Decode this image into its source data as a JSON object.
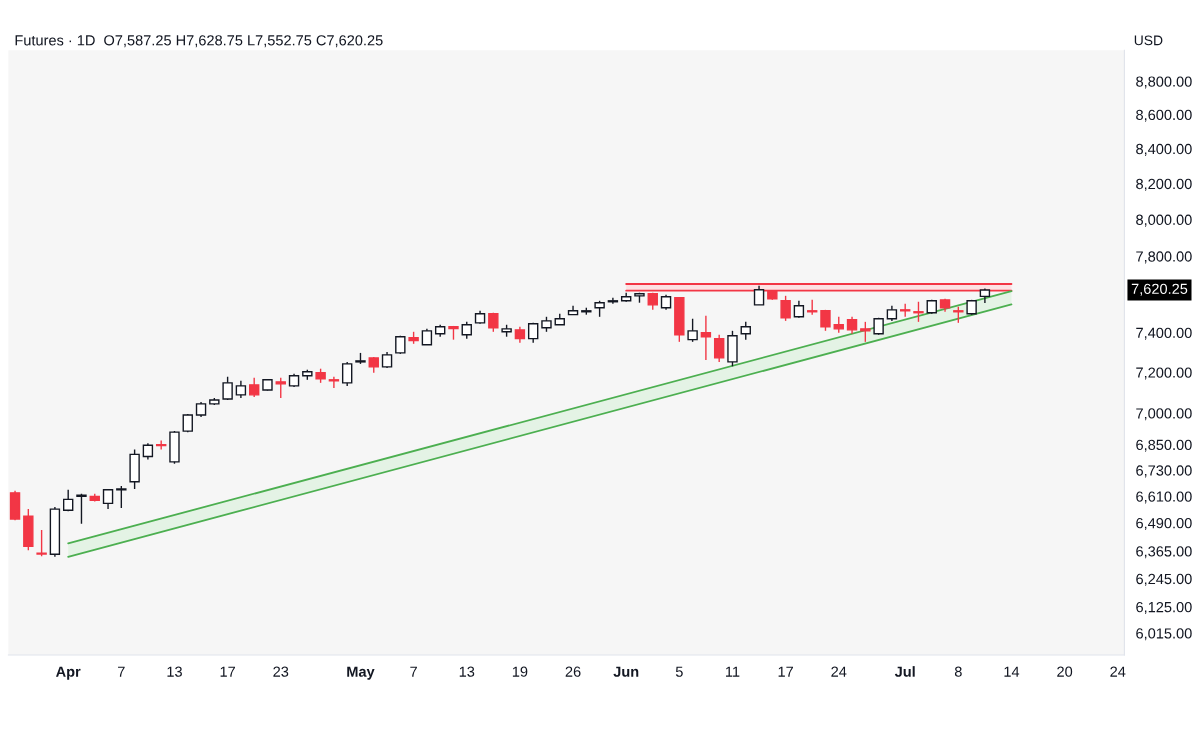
{
  "chart_data": {
    "type": "candlestick",
    "title": "Futures · 1D",
    "subtitle": "O7,587.25 H7,628.75 L7,552.75 C7,620.25",
    "categories": [
      null,
      null,
      null,
      null,
      "Apr",
      null,
      null,
      null,
      "7",
      null,
      null,
      null,
      "13",
      null,
      null,
      null,
      "17",
      null,
      null,
      null,
      "23",
      null,
      null,
      null,
      null,
      null,
      "May",
      null,
      null,
      null,
      "7",
      null,
      null,
      null,
      "13",
      null,
      null,
      null,
      "19",
      null,
      null,
      null,
      "26",
      null,
      null,
      null,
      "Jun",
      null,
      null,
      null,
      "5",
      null,
      null,
      null,
      "11",
      null,
      null,
      null,
      "17",
      null,
      null,
      null,
      "24",
      null,
      null,
      null,
      null,
      "Jul",
      null,
      null,
      null,
      "8",
      null,
      null,
      null,
      "14",
      null,
      null,
      null,
      "20",
      null,
      null,
      null,
      "24"
    ],
    "ohlc": [
      [
        6626,
        6635,
        6502,
        6507
      ],
      [
        6520,
        6552,
        6369,
        6386
      ],
      [
        6356,
        6458,
        6342,
        6352
      ],
      [
        6351,
        6561,
        6340,
        6552
      ],
      [
        6547,
        6640,
        6542,
        6596
      ],
      [
        6610,
        6622,
        6486,
        6615
      ],
      [
        6610,
        6622,
        6587,
        6592
      ],
      [
        6578,
        6644,
        6552,
        6640
      ],
      [
        6640,
        6657,
        6557,
        6644
      ],
      [
        6677,
        6827,
        6644,
        6804
      ],
      [
        6794,
        6856,
        6780,
        6847
      ],
      [
        6850,
        6870,
        6827,
        6845
      ],
      [
        6769,
        6914,
        6760,
        6909
      ],
      [
        6914,
        6996,
        6909,
        6991
      ],
      [
        6991,
        7054,
        6982,
        7045
      ],
      [
        7045,
        7074,
        7040,
        7064
      ],
      [
        7069,
        7178,
        7064,
        7148
      ],
      [
        7089,
        7158,
        7074,
        7133
      ],
      [
        7138,
        7173,
        7079,
        7089
      ],
      [
        7113,
        7165,
        7110,
        7163
      ],
      [
        7153,
        7173,
        7074,
        7143
      ],
      [
        7133,
        7193,
        7128,
        7183
      ],
      [
        7183,
        7213,
        7163,
        7203
      ],
      [
        7198,
        7218,
        7148,
        7168
      ],
      [
        7163,
        7178,
        7123,
        7158
      ],
      [
        7148,
        7252,
        7133,
        7242
      ],
      [
        7252,
        7297,
        7242,
        7257
      ],
      [
        7272,
        7277,
        7198,
        7227
      ],
      [
        7227,
        7302,
        7222,
        7287
      ],
      [
        7297,
        7384,
        7292,
        7379
      ],
      [
        7374,
        7404,
        7343,
        7359
      ],
      [
        7338,
        7419,
        7338,
        7409
      ],
      [
        7394,
        7440,
        7379,
        7430
      ],
      [
        7430,
        7434,
        7364,
        7420
      ],
      [
        7389,
        7455,
        7369,
        7440
      ],
      [
        7450,
        7512,
        7445,
        7497
      ],
      [
        7497,
        7502,
        7404,
        7425
      ],
      [
        7404,
        7440,
        7379,
        7419
      ],
      [
        7414,
        7430,
        7348,
        7369
      ],
      [
        7369,
        7450,
        7348,
        7445
      ],
      [
        7425,
        7481,
        7404,
        7460
      ],
      [
        7440,
        7497,
        7440,
        7471
      ],
      [
        7492,
        7538,
        7492,
        7512
      ],
      [
        7507,
        7528,
        7492,
        7512
      ],
      [
        7528,
        7564,
        7481,
        7554
      ],
      [
        7559,
        7580,
        7549,
        7564
      ],
      [
        7564,
        7606,
        7559,
        7585
      ],
      [
        7590,
        7606,
        7554,
        7601
      ],
      [
        7601,
        7606,
        7517,
        7543
      ],
      [
        7528,
        7595,
        7517,
        7585
      ],
      [
        7580,
        7580,
        7353,
        7389
      ],
      [
        7364,
        7471,
        7353,
        7409
      ],
      [
        7399,
        7487,
        7262,
        7379
      ],
      [
        7369,
        7389,
        7252,
        7272
      ],
      [
        7252,
        7409,
        7230,
        7384
      ],
      [
        7394,
        7455,
        7364,
        7430
      ],
      [
        7543,
        7643,
        7543,
        7622
      ],
      [
        7611,
        7617,
        7569,
        7575
      ],
      [
        7564,
        7590,
        7460,
        7476
      ],
      [
        7481,
        7564,
        7476,
        7538
      ],
      [
        7512,
        7569,
        7492,
        7507
      ],
      [
        7512,
        7517,
        7409,
        7430
      ],
      [
        7440,
        7481,
        7399,
        7419
      ],
      [
        7466,
        7481,
        7394,
        7414
      ],
      [
        7419,
        7455,
        7353,
        7409
      ],
      [
        7394,
        7476,
        7389,
        7471
      ],
      [
        7471,
        7538,
        7460,
        7517
      ],
      [
        7517,
        7548,
        7481,
        7512
      ],
      [
        7507,
        7559,
        7455,
        7502
      ],
      [
        7502,
        7569,
        7497,
        7564
      ],
      [
        7569,
        7575,
        7507,
        7528
      ],
      [
        7512,
        7533,
        7450,
        7507
      ],
      [
        7497,
        7569,
        7492,
        7564
      ],
      [
        7587.25,
        7628.75,
        7552.75,
        7620.25
      ],
      null,
      null,
      null,
      null,
      null,
      null,
      null,
      null,
      null,
      null
    ],
    "series": [
      {
        "type": "line",
        "x": [
          "Jun",
          "14"
        ],
        "values": [
          7652,
          7652
        ],
        "lower": [
          7617,
          7617
        ],
        "upper": [
          7652,
          7652
        ],
        "color": "#f23645"
      },
      {
        "type": "line",
        "x": [
          "Jun",
          "14"
        ],
        "values": [
          7617,
          7617
        ],
        "color": "#f23645"
      },
      {
        "type": "line",
        "x": [
          "Apr",
          "14"
        ],
        "values": [
          6399,
          7614
        ],
        "lower": [
          6340,
          7545
        ],
        "upper": [
          6399,
          7614
        ],
        "color": "#4caf50"
      },
      {
        "type": "line",
        "x": [
          "Apr",
          "14"
        ],
        "values": [
          6340,
          7545
        ],
        "color": "#4caf50"
      }
    ],
    "log": true,
    "ylim": [
      5925,
      8990
    ],
    "yticks": [
      {
        "value": 6015,
        "label": "6,015.00"
      },
      {
        "value": 6125,
        "label": "6,125.00"
      },
      {
        "value": 6245,
        "label": "6,245.00"
      },
      {
        "value": 6365,
        "label": "6,365.00"
      },
      {
        "value": 6490,
        "label": "6,490.00"
      },
      {
        "value": 6610,
        "label": "6,610.00"
      },
      {
        "value": 6730,
        "label": "6,730.00"
      },
      {
        "value": 6850,
        "label": "6,850.00"
      },
      {
        "value": 7000,
        "label": "7,000.00"
      },
      {
        "value": 7200,
        "label": "7,200.00"
      },
      {
        "value": 7400,
        "label": "7,400.00"
      },
      {
        "value": 7800,
        "label": "7,800.00"
      },
      {
        "value": 8000,
        "label": "8,000.00"
      },
      {
        "value": 8200,
        "label": "8,200.00"
      },
      {
        "value": 8400,
        "label": "8,400.00"
      },
      {
        "value": 8600,
        "label": "8,600.00"
      },
      {
        "value": 8800,
        "label": "8,800.00"
      }
    ],
    "annotations": [
      "USD",
      "7,620.25"
    ]
  }
}
